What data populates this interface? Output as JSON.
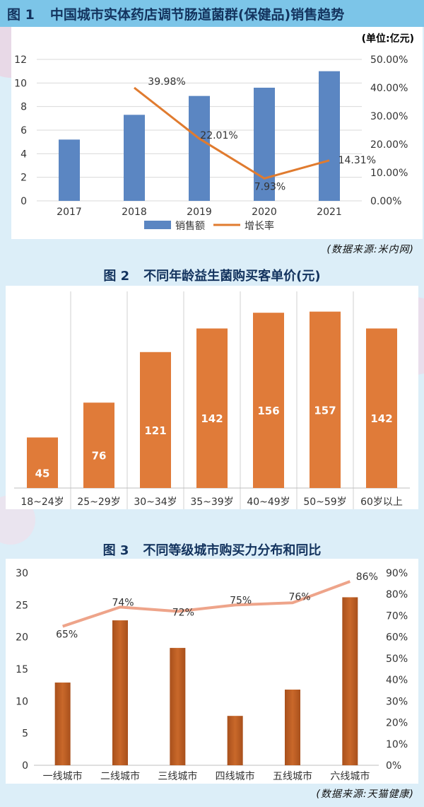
{
  "colors": {
    "bar_blue": "#5b86c2",
    "line_orange": "#e07b2f",
    "bar_orange": "#e07b39",
    "bar_copper": "#c9682a",
    "line_salmon": "#eea48a",
    "title_navy": "#13335e",
    "header_bg": "#7cc5e8"
  },
  "fig1": {
    "fig_label": "图 1",
    "title": "中国城市实体药店调节肠道菌群(保健品)销售趋势",
    "unit": "(单位:亿元)",
    "source": "(数据来源:米内网)"
  },
  "fig2": {
    "fig_label": "图 2",
    "title": "不同年龄益生菌购买客单价(元)"
  },
  "fig3": {
    "fig_label": "图 3",
    "title": "不同等级城市购买力分布和同比",
    "source": "(数据来源:天猫健康)"
  },
  "chart_data": [
    {
      "type": "bar",
      "categories": [
        "2017",
        "2018",
        "2019",
        "2020",
        "2021"
      ],
      "series": [
        {
          "name": "销售额",
          "type": "bar",
          "axis": "left",
          "values": [
            5.2,
            7.3,
            8.9,
            9.6,
            11.0
          ]
        },
        {
          "name": "增长率",
          "type": "line",
          "axis": "right",
          "values": [
            null,
            39.98,
            22.01,
            7.93,
            14.31
          ],
          "labels": [
            "",
            "39.98%",
            "22.01%",
            "7.93%",
            "14.31%"
          ]
        }
      ],
      "ylim": [
        0,
        12
      ],
      "yticks": [
        "0",
        "2",
        "4",
        "6",
        "8",
        "10",
        "12"
      ],
      "y2lim": [
        0,
        50
      ],
      "y2ticks": [
        "0.00%",
        "10.00%",
        "20.00%",
        "30.00%",
        "40.00%",
        "50.00%"
      ],
      "grid": true,
      "legend": "bottom"
    },
    {
      "type": "bar",
      "categories": [
        "18~24岁",
        "25~29岁",
        "30~34岁",
        "35~39岁",
        "40~49岁",
        "50~59岁",
        "60岁以上"
      ],
      "values": [
        45,
        76,
        121,
        142,
        156,
        157,
        142
      ],
      "labels": [
        "45",
        "76",
        "121",
        "142",
        "156",
        "157",
        "142"
      ],
      "ylim": [
        0,
        175
      ],
      "grid": false
    },
    {
      "type": "bar",
      "categories": [
        "一线城市",
        "二线城市",
        "三线城市",
        "四线城市",
        "五线城市",
        "六线城市"
      ],
      "series": [
        {
          "type": "bar",
          "axis": "left",
          "values": [
            12.9,
            22.6,
            18.3,
            7.7,
            11.8,
            26.2
          ]
        },
        {
          "type": "line",
          "axis": "right",
          "values": [
            65,
            74,
            72,
            75,
            76,
            86
          ],
          "labels": [
            "65%",
            "74%",
            "72%",
            "75%",
            "76%",
            "86%"
          ]
        }
      ],
      "ylim": [
        0,
        30
      ],
      "yticks": [
        "0",
        "5",
        "10",
        "15",
        "20",
        "25",
        "30"
      ],
      "y2lim": [
        0,
        90
      ],
      "y2ticks": [
        "0%",
        "10%",
        "20%",
        "30%",
        "40%",
        "50%",
        "60%",
        "70%",
        "80%",
        "90%"
      ],
      "grid": false
    }
  ]
}
